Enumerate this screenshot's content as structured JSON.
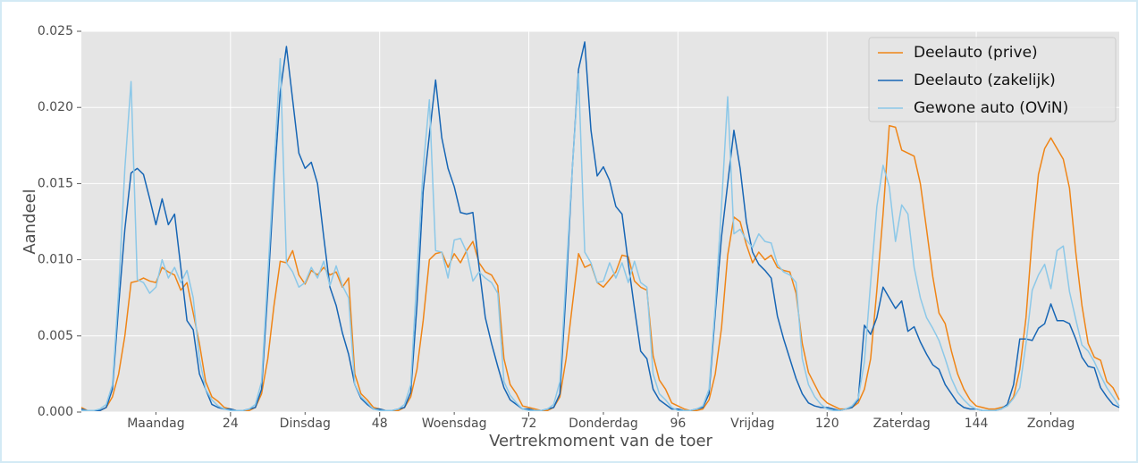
{
  "chart_data": {
    "type": "line",
    "y_label": "Aandeel",
    "x_label": "Vertrekmoment van de toer",
    "legend": "upper right",
    "grid": true,
    "xlim": [
      0,
      167
    ],
    "ylim": [
      0,
      0.025
    ],
    "xticks": [
      24,
      48,
      72,
      96,
      120,
      144
    ],
    "xminor_ticks": [
      {
        "value": 12,
        "label": "Maandag"
      },
      {
        "value": 36,
        "label": "Dinsdag"
      },
      {
        "value": 60,
        "label": "Woensdag"
      },
      {
        "value": 84,
        "label": "Donderdag"
      },
      {
        "value": 108,
        "label": "Vrijdag"
      },
      {
        "value": 132,
        "label": "Zaterdag"
      },
      {
        "value": 156,
        "label": "Zondag"
      }
    ],
    "yticks": [
      {
        "value": 0,
        "label": "0.000"
      },
      {
        "value": 0.005,
        "label": "0.005"
      },
      {
        "value": 0.01,
        "label": "0.010"
      },
      {
        "value": 0.015,
        "label": "0.015"
      },
      {
        "value": 0.02,
        "label": "0.020"
      },
      {
        "value": 0.025,
        "label": "0.025"
      }
    ],
    "x": [
      0,
      1,
      2,
      3,
      4,
      5,
      6,
      7,
      8,
      9,
      10,
      11,
      12,
      13,
      14,
      15,
      16,
      17,
      18,
      19,
      20,
      21,
      22,
      23,
      24,
      25,
      26,
      27,
      28,
      29,
      30,
      31,
      32,
      33,
      34,
      35,
      36,
      37,
      38,
      39,
      40,
      41,
      42,
      43,
      44,
      45,
      46,
      47,
      48,
      49,
      50,
      51,
      52,
      53,
      54,
      55,
      56,
      57,
      58,
      59,
      60,
      61,
      62,
      63,
      64,
      65,
      66,
      67,
      68,
      69,
      70,
      71,
      72,
      73,
      74,
      75,
      76,
      77,
      78,
      79,
      80,
      81,
      82,
      83,
      84,
      85,
      86,
      87,
      88,
      89,
      90,
      91,
      92,
      93,
      94,
      95,
      96,
      97,
      98,
      99,
      100,
      101,
      102,
      103,
      104,
      105,
      106,
      107,
      108,
      109,
      110,
      111,
      112,
      113,
      114,
      115,
      116,
      117,
      118,
      119,
      120,
      121,
      122,
      123,
      124,
      125,
      126,
      127,
      128,
      129,
      130,
      131,
      132,
      133,
      134,
      135,
      136,
      137,
      138,
      139,
      140,
      141,
      142,
      143,
      144,
      145,
      146,
      147,
      148,
      149,
      150,
      151,
      152,
      153,
      154,
      155,
      156,
      157,
      158,
      159,
      160,
      161,
      162,
      163,
      164,
      165,
      166,
      167
    ],
    "series": [
      {
        "name": "Deelauto (prive)",
        "color": "#ef8517",
        "values": [
          0.0003,
          0.0001,
          0.0001,
          0.0001,
          0.0003,
          0.001,
          0.0025,
          0.005,
          0.0085,
          0.0086,
          0.0088,
          0.0086,
          0.0085,
          0.0095,
          0.0092,
          0.009,
          0.008,
          0.0085,
          0.0065,
          0.0045,
          0.002,
          0.001,
          0.0007,
          0.0003,
          0.0002,
          0.0001,
          0.0001,
          0.0001,
          0.0003,
          0.0012,
          0.0035,
          0.007,
          0.0099,
          0.0098,
          0.0106,
          0.009,
          0.0084,
          0.0093,
          0.009,
          0.0095,
          0.009,
          0.0092,
          0.0082,
          0.0088,
          0.0025,
          0.0012,
          0.0008,
          0.0003,
          0.0002,
          0.0001,
          0.0001,
          0.0001,
          0.0003,
          0.001,
          0.0028,
          0.006,
          0.01,
          0.0104,
          0.0105,
          0.0095,
          0.0104,
          0.0098,
          0.0106,
          0.0112,
          0.0098,
          0.0092,
          0.009,
          0.0083,
          0.0035,
          0.0018,
          0.0012,
          0.0004,
          0.0003,
          0.0002,
          0.0001,
          0.0001,
          0.0003,
          0.001,
          0.0035,
          0.007,
          0.0104,
          0.0095,
          0.0097,
          0.0085,
          0.0082,
          0.0087,
          0.0092,
          0.0103,
          0.0102,
          0.0086,
          0.0082,
          0.008,
          0.0037,
          0.0021,
          0.0015,
          0.0006,
          0.0004,
          0.0002,
          0.0001,
          0.0001,
          0.0002,
          0.0008,
          0.0025,
          0.0055,
          0.0103,
          0.0128,
          0.0125,
          0.011,
          0.0098,
          0.0105,
          0.01,
          0.0103,
          0.0095,
          0.0093,
          0.0092,
          0.0078,
          0.0045,
          0.0026,
          0.0018,
          0.001,
          0.0006,
          0.0004,
          0.0002,
          0.0002,
          0.0003,
          0.0006,
          0.0015,
          0.0035,
          0.008,
          0.013,
          0.0188,
          0.0187,
          0.0172,
          0.017,
          0.0168,
          0.015,
          0.012,
          0.0089,
          0.0065,
          0.0058,
          0.004,
          0.0025,
          0.0015,
          0.0008,
          0.0004,
          0.0003,
          0.0002,
          0.0002,
          0.0003,
          0.0004,
          0.001,
          0.0028,
          0.0062,
          0.0115,
          0.0156,
          0.0173,
          0.018,
          0.0173,
          0.0166,
          0.0147,
          0.0105,
          0.007,
          0.0045,
          0.0036,
          0.0034,
          0.002,
          0.0016,
          0.0008
        ]
      },
      {
        "name": "Deelauto (zakelijk)",
        "color": "#1766b5",
        "values": [
          0.0002,
          0.0001,
          0.0001,
          0.0001,
          0.0003,
          0.0015,
          0.007,
          0.012,
          0.0157,
          0.016,
          0.0156,
          0.014,
          0.0123,
          0.014,
          0.0123,
          0.013,
          0.0095,
          0.006,
          0.0054,
          0.0025,
          0.0015,
          0.0005,
          0.0003,
          0.0002,
          0.0002,
          0.0001,
          0.0001,
          0.0002,
          0.0003,
          0.0015,
          0.008,
          0.015,
          0.021,
          0.024,
          0.0205,
          0.017,
          0.016,
          0.0164,
          0.015,
          0.0115,
          0.0082,
          0.007,
          0.0052,
          0.0038,
          0.0018,
          0.0009,
          0.0005,
          0.0002,
          0.0002,
          0.0001,
          0.0001,
          0.0002,
          0.0003,
          0.0013,
          0.007,
          0.0145,
          0.0182,
          0.0218,
          0.018,
          0.016,
          0.0148,
          0.0131,
          0.013,
          0.0131,
          0.0095,
          0.0062,
          0.0045,
          0.003,
          0.0016,
          0.0008,
          0.0005,
          0.0002,
          0.0002,
          0.0001,
          0.0001,
          0.0002,
          0.0003,
          0.0012,
          0.008,
          0.016,
          0.0225,
          0.0243,
          0.0185,
          0.0155,
          0.0161,
          0.0152,
          0.0135,
          0.013,
          0.0098,
          0.0068,
          0.004,
          0.0035,
          0.0015,
          0.0008,
          0.0005,
          0.0002,
          0.0002,
          0.0001,
          0.0001,
          0.0002,
          0.0003,
          0.0012,
          0.0065,
          0.0115,
          0.015,
          0.0185,
          0.016,
          0.0125,
          0.0105,
          0.0097,
          0.0093,
          0.0088,
          0.0063,
          0.0048,
          0.0035,
          0.0022,
          0.0012,
          0.0006,
          0.0004,
          0.0003,
          0.0003,
          0.0002,
          0.0001,
          0.0002,
          0.0003,
          0.0008,
          0.0057,
          0.0051,
          0.0062,
          0.0082,
          0.0075,
          0.0068,
          0.0073,
          0.0053,
          0.0056,
          0.0046,
          0.0038,
          0.0031,
          0.0028,
          0.0018,
          0.0012,
          0.0006,
          0.0003,
          0.0002,
          0.0002,
          0.0001,
          0.0001,
          0.0001,
          0.0002,
          0.0005,
          0.0018,
          0.0048,
          0.0048,
          0.0047,
          0.0055,
          0.0058,
          0.0071,
          0.006,
          0.006,
          0.0058,
          0.0048,
          0.0036,
          0.003,
          0.0029,
          0.0016,
          0.001,
          0.0005,
          0.0003
        ]
      },
      {
        "name": "Gewone auto (OViN)",
        "color": "#8cc8e8",
        "values": [
          0.0001,
          0.0001,
          0.0001,
          0.0002,
          0.0005,
          0.0018,
          0.008,
          0.016,
          0.0217,
          0.0087,
          0.0085,
          0.0078,
          0.0082,
          0.01,
          0.0088,
          0.0095,
          0.0085,
          0.0093,
          0.0075,
          0.0035,
          0.0015,
          0.0008,
          0.0004,
          0.0002,
          0.0001,
          0.0001,
          0.0001,
          0.0002,
          0.0005,
          0.002,
          0.009,
          0.016,
          0.0232,
          0.0098,
          0.0092,
          0.0082,
          0.0085,
          0.0095,
          0.0088,
          0.0099,
          0.0083,
          0.0096,
          0.0083,
          0.0075,
          0.0018,
          0.001,
          0.0006,
          0.0002,
          0.0001,
          0.0001,
          0.0001,
          0.0002,
          0.0005,
          0.0018,
          0.009,
          0.016,
          0.0205,
          0.0106,
          0.0105,
          0.0088,
          0.0113,
          0.0114,
          0.0105,
          0.0086,
          0.0092,
          0.0088,
          0.0085,
          0.0078,
          0.002,
          0.0011,
          0.0006,
          0.0002,
          0.0001,
          0.0001,
          0.0001,
          0.0002,
          0.0005,
          0.002,
          0.009,
          0.016,
          0.0222,
          0.0105,
          0.0098,
          0.0085,
          0.0086,
          0.0098,
          0.0088,
          0.0098,
          0.0085,
          0.0099,
          0.0085,
          0.0082,
          0.0025,
          0.0012,
          0.0008,
          0.0003,
          0.0001,
          0.0001,
          0.0001,
          0.0002,
          0.0004,
          0.0015,
          0.007,
          0.0135,
          0.0207,
          0.0117,
          0.012,
          0.0113,
          0.0108,
          0.0117,
          0.0112,
          0.0111,
          0.0097,
          0.0092,
          0.009,
          0.0085,
          0.0035,
          0.0018,
          0.001,
          0.0005,
          0.0002,
          0.0001,
          0.0001,
          0.0002,
          0.0004,
          0.0009,
          0.0033,
          0.0085,
          0.0135,
          0.0162,
          0.0148,
          0.0112,
          0.0136,
          0.013,
          0.0095,
          0.0075,
          0.0062,
          0.0055,
          0.0047,
          0.0035,
          0.0022,
          0.0013,
          0.0008,
          0.0004,
          0.0002,
          0.0001,
          0.0001,
          0.0001,
          0.0002,
          0.0004,
          0.0009,
          0.0016,
          0.0045,
          0.008,
          0.009,
          0.0097,
          0.0081,
          0.0106,
          0.0109,
          0.0079,
          0.0061,
          0.0044,
          0.004,
          0.0033,
          0.0024,
          0.0016,
          0.001,
          0.0004
        ]
      }
    ]
  }
}
